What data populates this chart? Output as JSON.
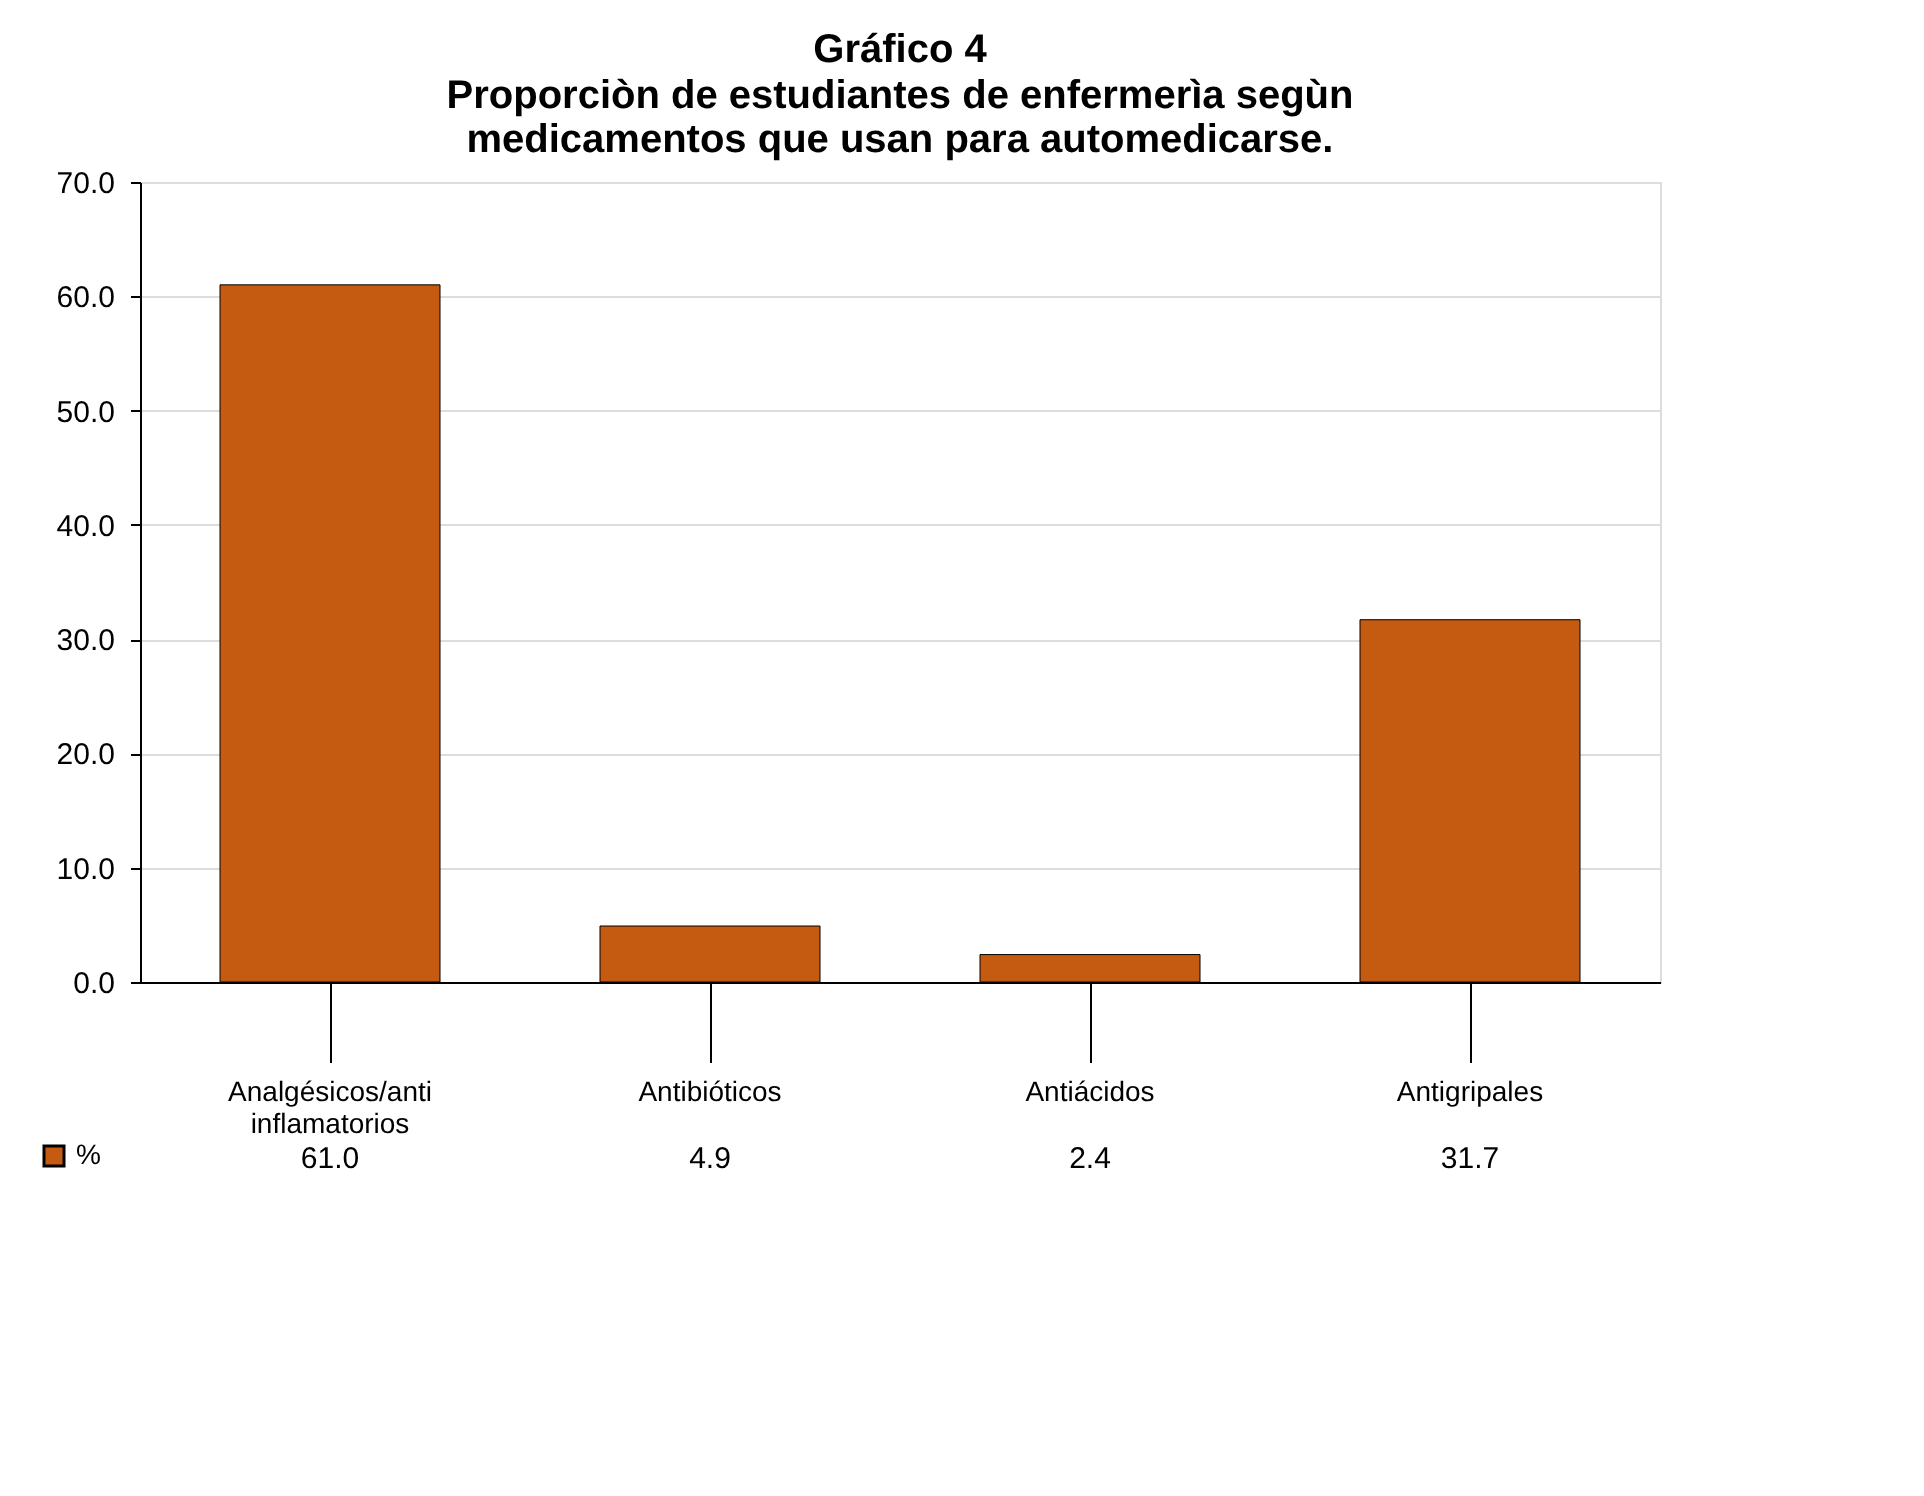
{
  "chart_data": {
    "type": "bar",
    "title": "Gráfico 4",
    "subtitle": "Proporciòn de estudiantes de enfermerìa segùn medicamentos que usan para automedicarse.",
    "categories": [
      "Analgésicos/anti inflamatorios",
      "Antibióticos",
      "Antiácidos",
      "Antigripales"
    ],
    "series": [
      {
        "name": "%",
        "color": "#c55a11",
        "values": [
          61.0,
          4.9,
          2.4,
          31.7
        ],
        "value_labels": [
          "61.0",
          "4.9",
          "2.4",
          "31.7"
        ]
      }
    ],
    "ylim": [
      0,
      70
    ],
    "yticks": [
      {
        "value": 0,
        "label": "0.0"
      },
      {
        "value": 10,
        "label": "10.0"
      },
      {
        "value": 20,
        "label": "20.0"
      },
      {
        "value": 30,
        "label": "30.0"
      },
      {
        "value": 40,
        "label": "40.0"
      },
      {
        "value": 50,
        "label": "50.0"
      },
      {
        "value": 60,
        "label": "60.0"
      },
      {
        "value": 70,
        "label": "70.0"
      }
    ],
    "grid": "y",
    "legend": "bottom left"
  }
}
